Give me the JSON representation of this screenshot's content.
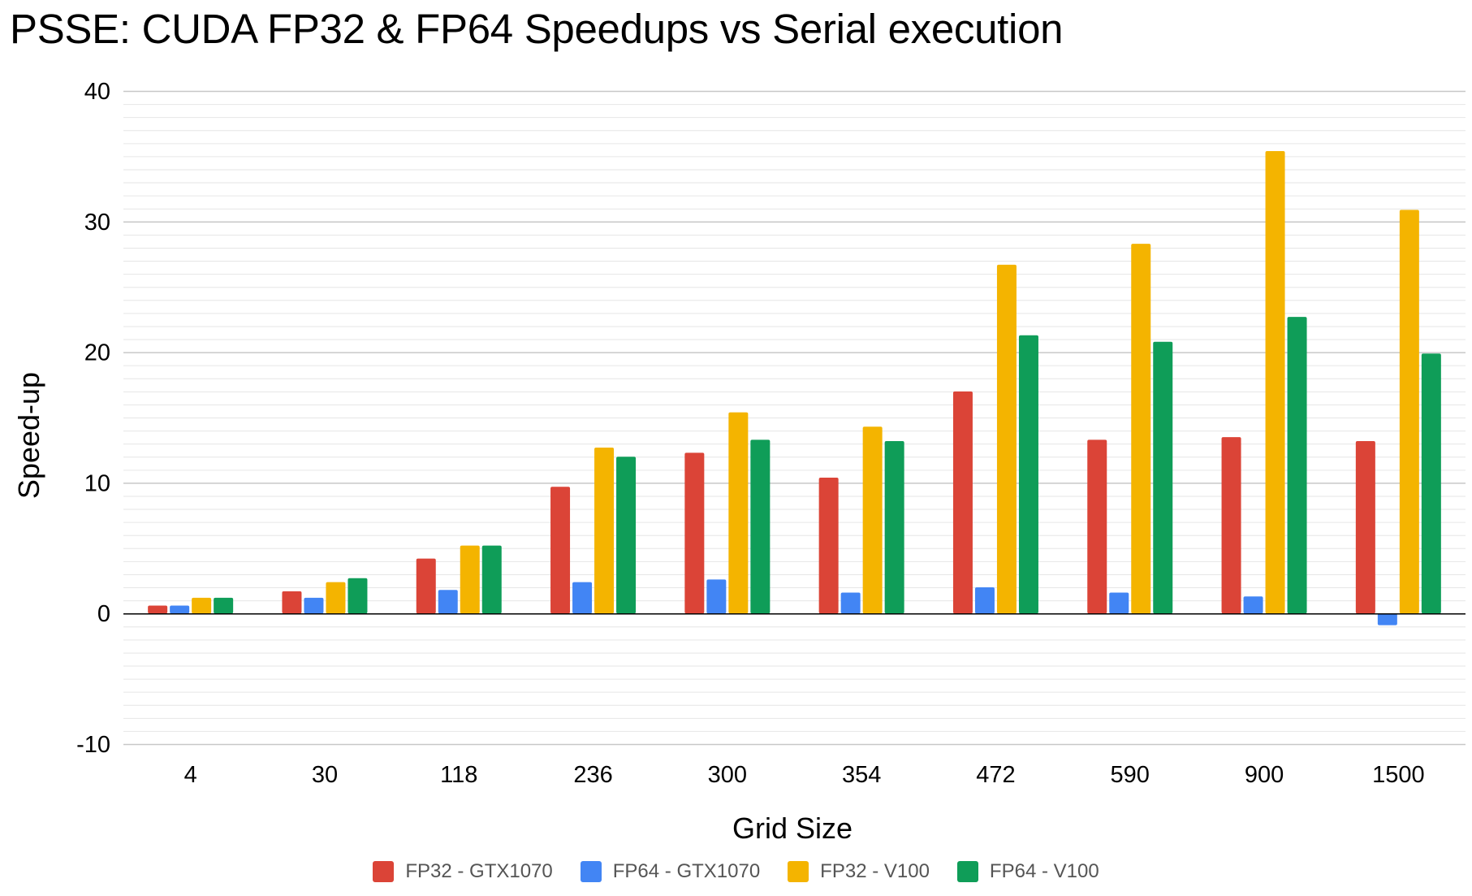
{
  "chart_data": {
    "type": "bar",
    "title": "PSSE: CUDA FP32 & FP64 Speedups vs Serial execution",
    "xlabel": "Grid Size",
    "ylabel": "Speed-up",
    "ylim": [
      -10,
      40
    ],
    "yticks": [
      "-10",
      "0",
      "10",
      "20",
      "30",
      "40"
    ],
    "grid": true,
    "legend_position": "bottom",
    "categories": [
      "4",
      "30",
      "118",
      "236",
      "300",
      "354",
      "472",
      "590",
      "900",
      "1500"
    ],
    "series": [
      {
        "name": "FP32 - GTX1070",
        "color": "#db4437",
        "values": [
          0.6,
          1.7,
          4.2,
          9.7,
          12.3,
          10.4,
          17.0,
          13.3,
          13.5,
          13.2
        ]
      },
      {
        "name": "FP64 - GTX1070",
        "color": "#4285f4",
        "values": [
          0.6,
          1.2,
          1.8,
          2.4,
          2.6,
          1.6,
          2.0,
          1.6,
          1.3,
          -0.9
        ]
      },
      {
        "name": "FP32 - V100",
        "color": "#f4b400",
        "values": [
          1.2,
          2.4,
          5.2,
          12.7,
          15.4,
          14.3,
          26.7,
          28.3,
          35.4,
          30.9
        ]
      },
      {
        "name": "FP64 - V100",
        "color": "#0f9d58",
        "values": [
          1.2,
          2.7,
          5.2,
          12.0,
          13.3,
          13.2,
          21.3,
          20.8,
          22.7,
          19.9
        ]
      }
    ]
  }
}
